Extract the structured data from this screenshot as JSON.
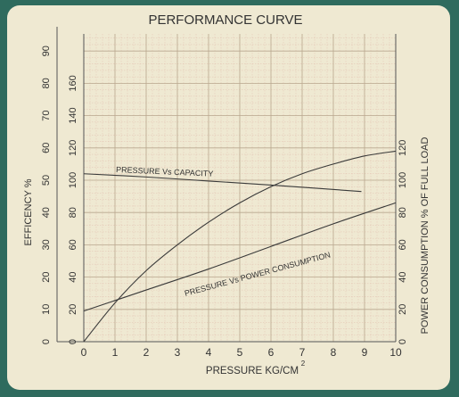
{
  "chart_data": {
    "type": "line",
    "title": "PERFORMANCE CURVE",
    "xlabel": "PRESSURE KG/CM",
    "xlabel_superscript": "2",
    "ylabel_left_outer": "EFFICENCY %",
    "ylabel_right": "POWER CONSUMPTION % OF FULL LOAD",
    "xlim": [
      0,
      10
    ],
    "x_ticks": [
      "0",
      "1",
      "2",
      "3",
      "4",
      "5",
      "6",
      "7",
      "8",
      "9",
      "10"
    ],
    "efficiency_axis": {
      "range": [
        0,
        90
      ],
      "ticks": [
        "0",
        "10",
        "20",
        "30",
        "40",
        "50",
        "60",
        "70",
        "80",
        "90"
      ]
    },
    "capacity_axis": {
      "range": [
        0,
        180
      ],
      "ticks": [
        "0",
        "20",
        "40",
        "60",
        "80",
        "100",
        "120",
        "140",
        "160"
      ]
    },
    "power_axis": {
      "range": [
        0,
        180
      ],
      "ticks": [
        "0",
        "20",
        "40",
        "60",
        "80",
        "100",
        "120"
      ]
    },
    "grid": true,
    "series": [
      {
        "name": "PRESSURE Vs CAPACITY",
        "axis": "capacity_axis",
        "x": [
          0,
          2,
          4,
          6,
          8.9
        ],
        "values": [
          104,
          102,
          99.5,
          97,
          93
        ]
      },
      {
        "name": "PRESSURE Vs POWER CONSUMPTION",
        "axis": "power_axis",
        "x": [
          0,
          2,
          4,
          6,
          8,
          10
        ],
        "values": [
          19,
          32,
          45,
          59,
          73,
          86
        ]
      },
      {
        "name": "",
        "axis": "efficiency_axis",
        "x": [
          0,
          1,
          2,
          3,
          4,
          5,
          6,
          7,
          8,
          9,
          10
        ],
        "values": [
          0,
          12,
          22,
          30,
          37,
          43,
          48,
          52,
          55,
          57.5,
          59
        ]
      }
    ]
  }
}
